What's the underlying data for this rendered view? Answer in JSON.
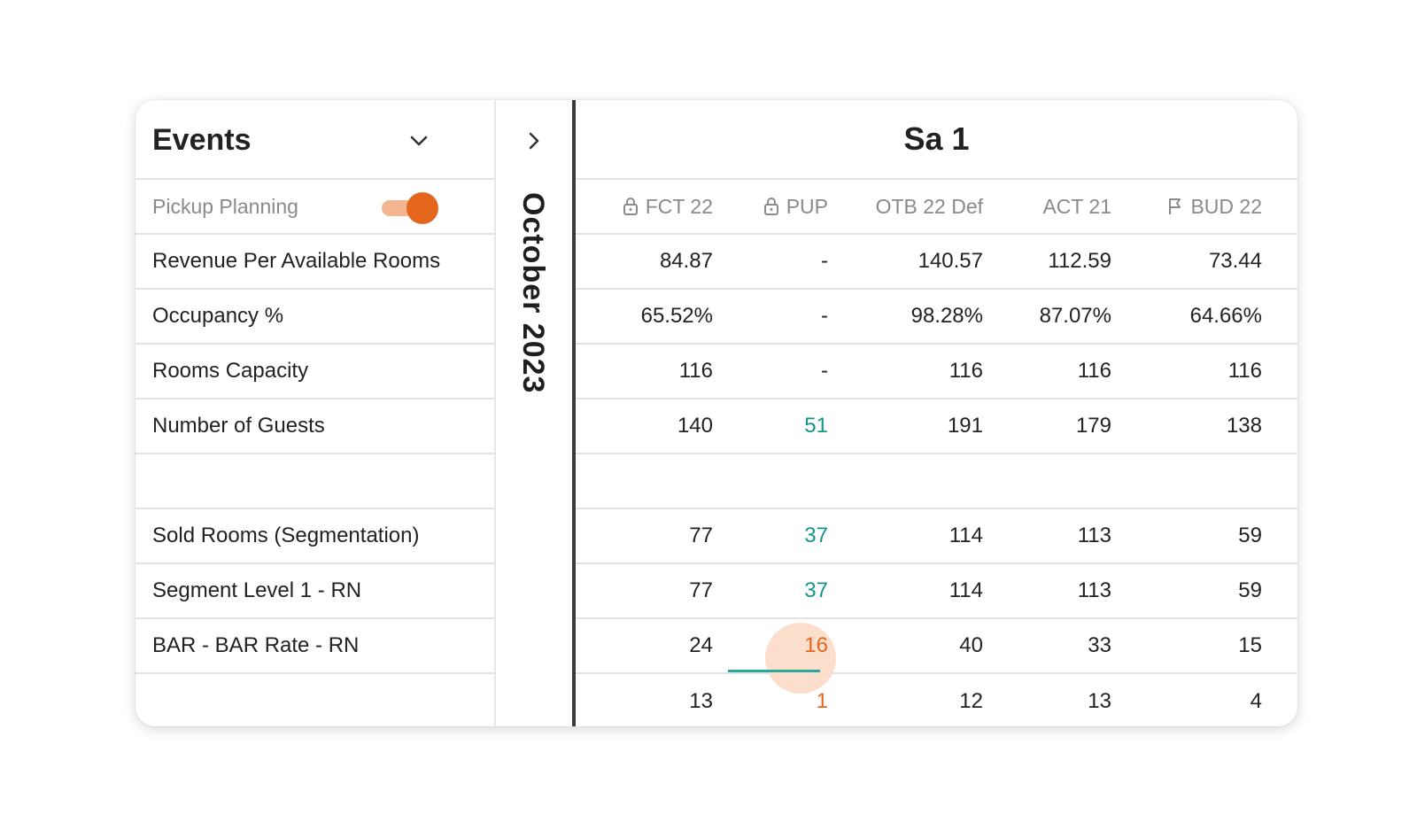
{
  "left_panel": {
    "title": "Events",
    "pickup_planning": {
      "label": "Pickup Planning",
      "enabled": true
    },
    "rows": [
      "Revenue Per Available Rooms",
      "Occupancy %",
      "Rooms Capacity",
      "Number of Guests",
      "",
      "Sold Rooms (Segmentation)",
      "Segment Level 1 - RN",
      "BAR - BAR Rate - RN",
      ""
    ]
  },
  "middle_panel": {
    "month": "October 2023"
  },
  "day_header": "Sa 1",
  "columns": [
    {
      "label": "FCT 22",
      "icon": "lock-icon"
    },
    {
      "label": "PUP",
      "icon": "lock-icon"
    },
    {
      "label": "OTB 22 Def",
      "icon": ""
    },
    {
      "label": "ACT 21",
      "icon": ""
    },
    {
      "label": "BUD 22",
      "icon": "flag-icon"
    }
  ],
  "rows": [
    [
      "84.87",
      "-",
      "140.57",
      "112.59",
      "73.44"
    ],
    [
      "65.52%",
      "-",
      "98.28%",
      "87.07%",
      "64.66%"
    ],
    [
      "116",
      "-",
      "116",
      "116",
      "116"
    ],
    [
      "140",
      "51",
      "191",
      "179",
      "138"
    ],
    [
      "",
      "",
      "",
      "",
      ""
    ],
    [
      "77",
      "37",
      "114",
      "113",
      "59"
    ],
    [
      "77",
      "37",
      "114",
      "113",
      "59"
    ],
    [
      "24",
      "16",
      "40",
      "33",
      "15"
    ],
    [
      "13",
      "1",
      "12",
      "13",
      "4"
    ]
  ],
  "colors": {
    "accent_orange": "#e4671c",
    "teal": "#14958a",
    "toggle_track": "#f3b590",
    "highlight": "#fbdcc9"
  }
}
